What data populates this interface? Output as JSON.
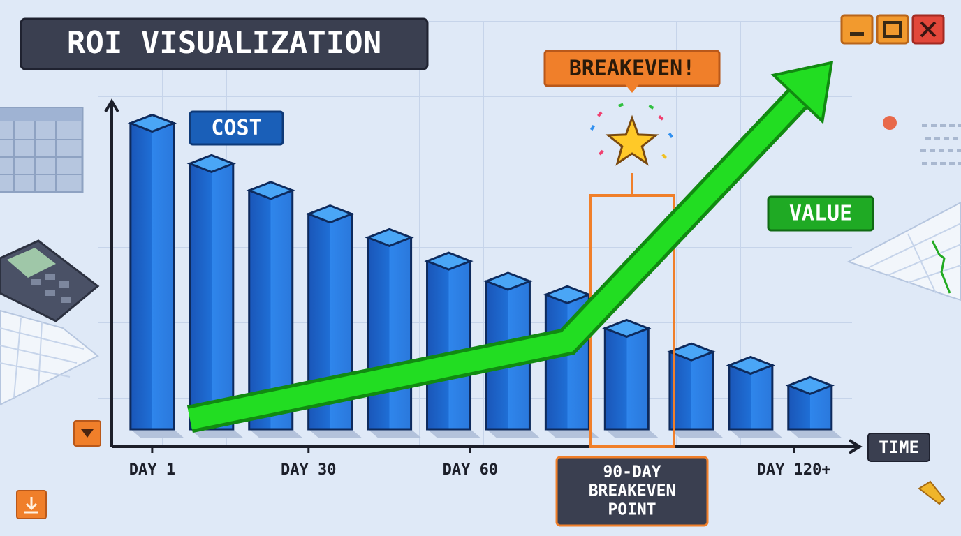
{
  "chart_data": {
    "type": "bar",
    "title": "ROI VISUALIZATION",
    "x_label": "TIME",
    "xlim": [
      -3,
      133
    ],
    "ylim": [
      0,
      110
    ],
    "xticks": [
      {
        "value": 1,
        "label": "DAY 1"
      },
      {
        "value": 30,
        "label": "DAY 30"
      },
      {
        "value": 60,
        "label": "DAY 60"
      },
      {
        "value": 120,
        "label": "DAY 120+"
      }
    ],
    "series": [
      {
        "name": "COST",
        "type": "bar",
        "color": "#1f6fd6",
        "x": [
          1,
          12,
          23,
          34,
          45,
          56,
          67,
          78,
          89,
          101,
          112,
          123
        ],
        "values": [
          91,
          79,
          71,
          64,
          57,
          50,
          44,
          40,
          30,
          23,
          19,
          13
        ]
      },
      {
        "name": "VALUE",
        "type": "line",
        "color": "#22dd22",
        "x": [
          8,
          78,
          127
        ],
        "values": [
          3,
          26,
          109
        ]
      }
    ],
    "annotations": [
      {
        "text": "BREAKEVEN!",
        "x": 90
      },
      {
        "lines": [
          "90-DAY",
          "BREAKEVEN",
          "POINT"
        ],
        "x": 90
      }
    ]
  }
}
